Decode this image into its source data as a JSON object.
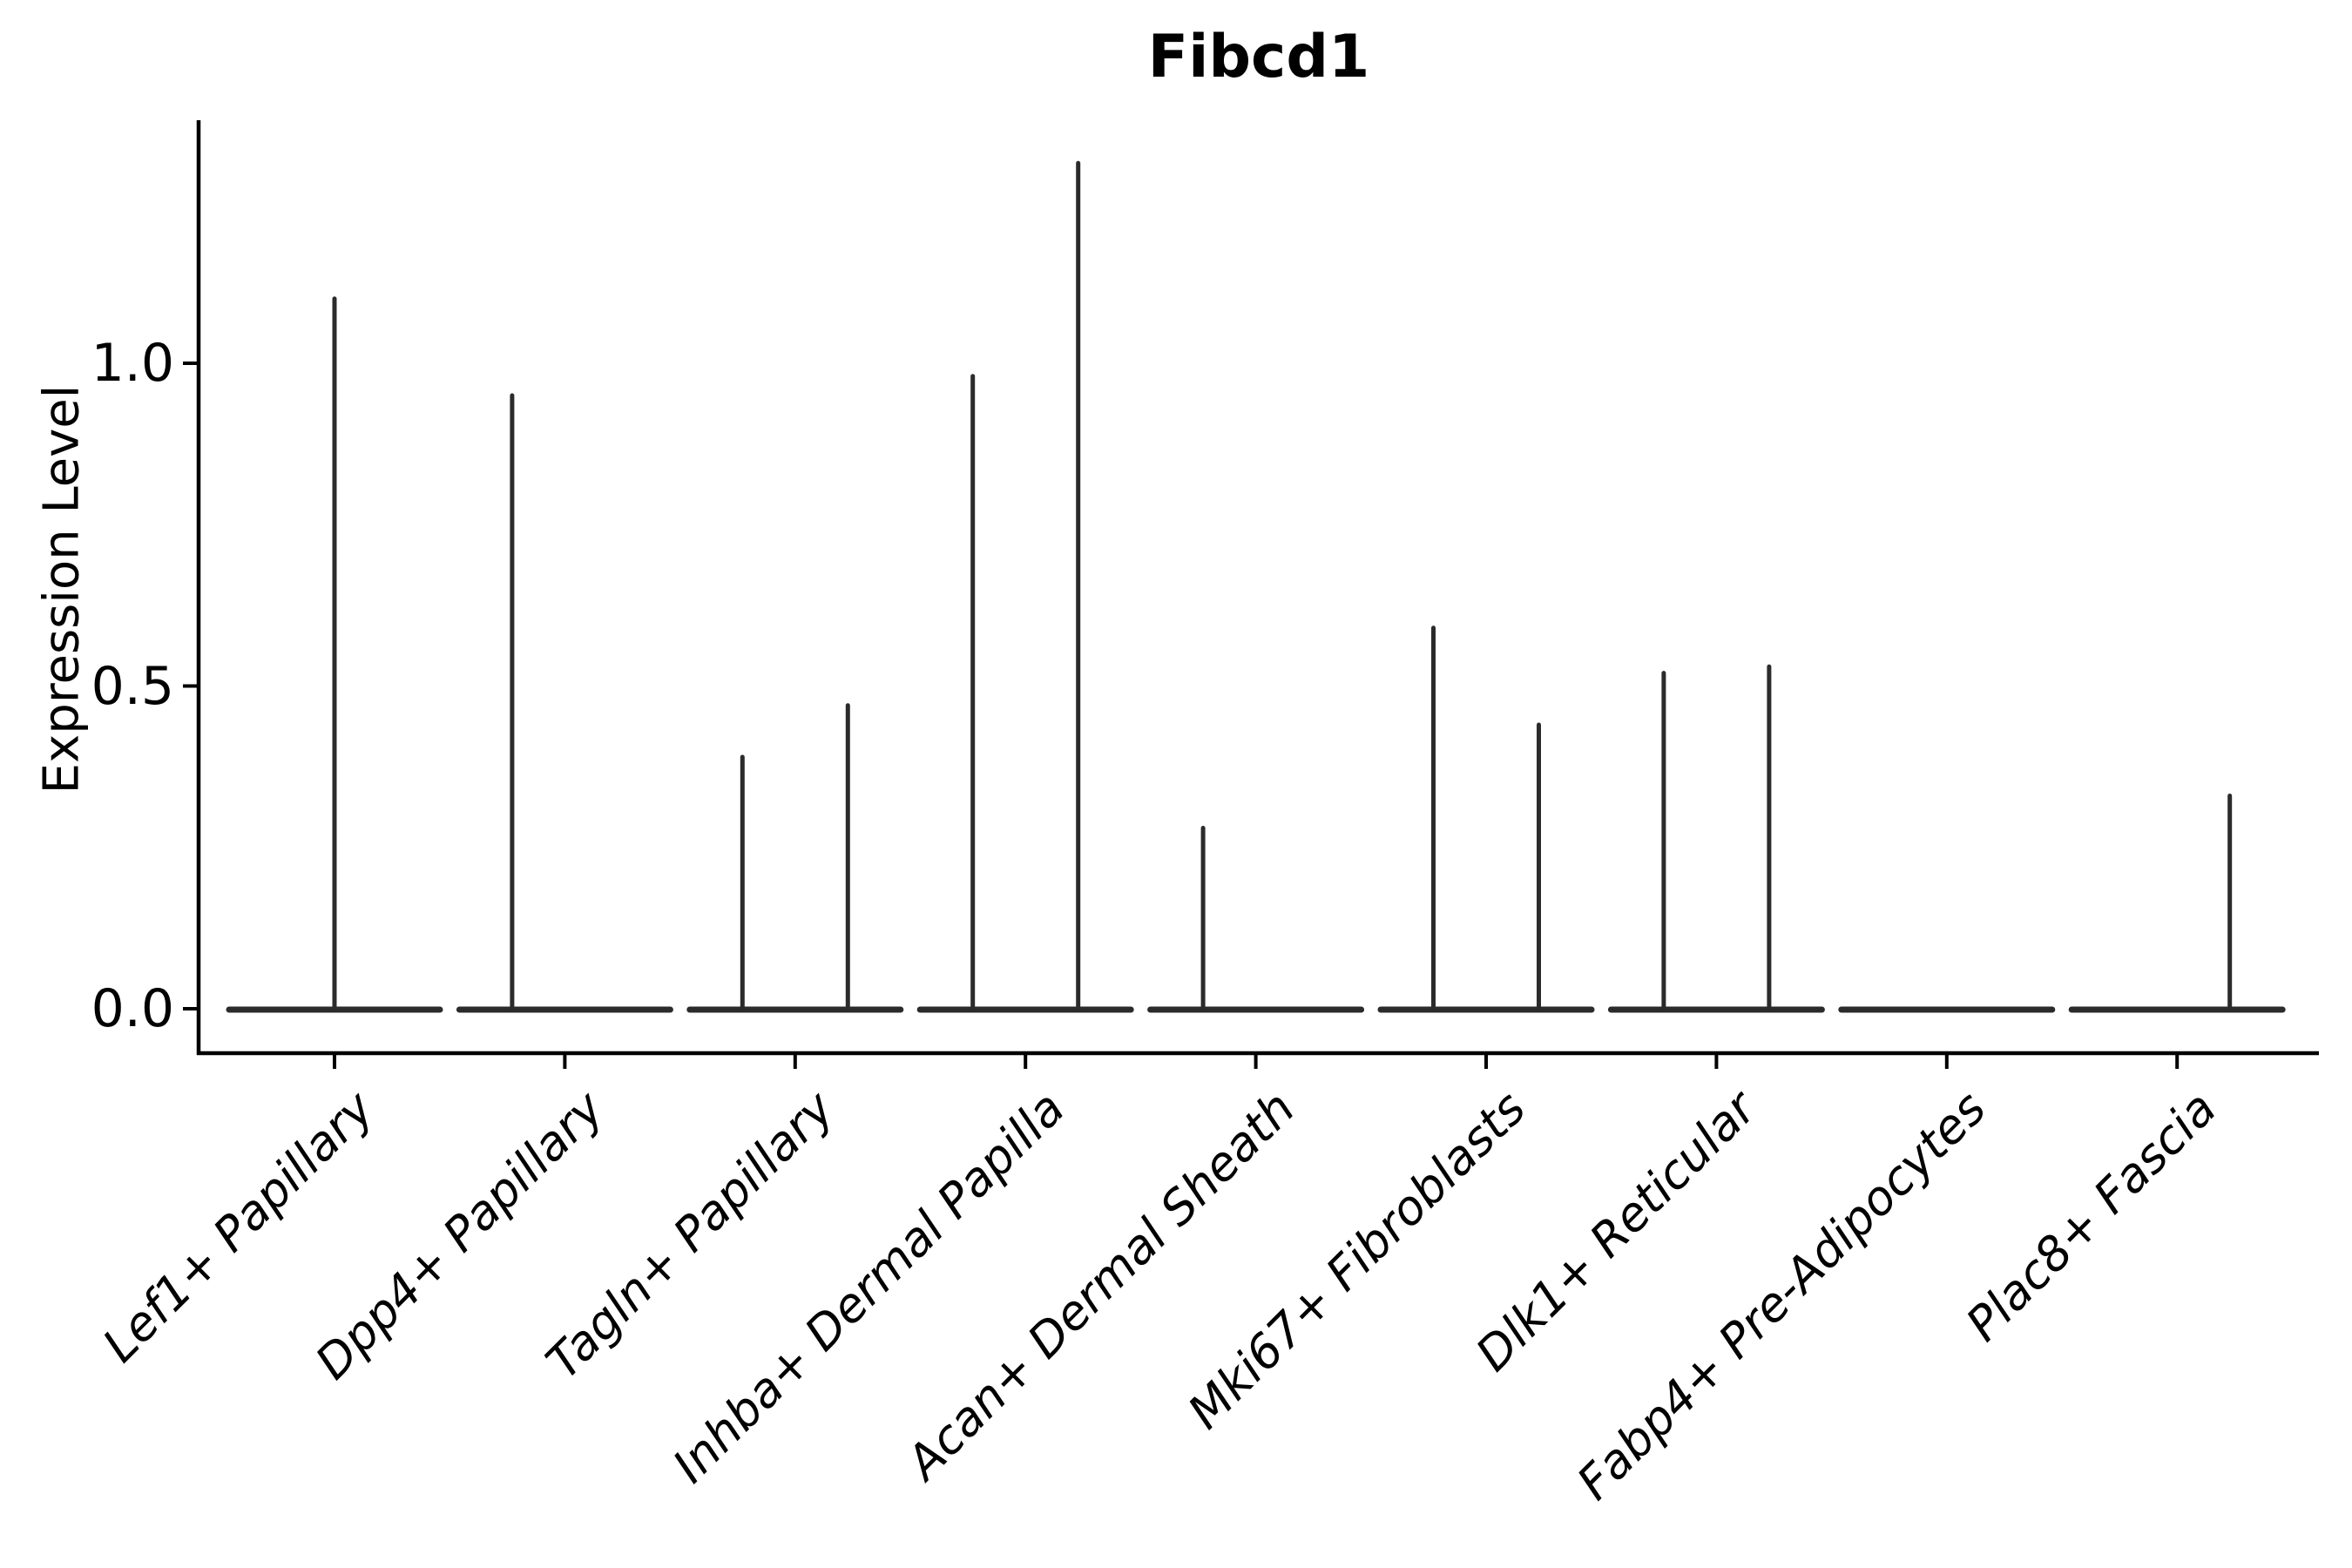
{
  "chart_data": {
    "type": "violin",
    "title": "Fibcd1",
    "ylabel": "Expression Level",
    "xlabel": "",
    "grid": false,
    "legend": "none",
    "ylim": [
      -0.07,
      1.37
    ],
    "ytick_values": [
      0.0,
      0.5,
      1.0
    ],
    "ytick_labels": [
      "0.0",
      "0.5",
      "1.0"
    ],
    "line_color": "#2b2b2b",
    "axis_color": "#000000",
    "categories": [
      "Lef1+ Papillary",
      "Dpp4+ Papillary",
      "Tagln+ Papillary",
      "Inhba+ Dermal Papilla",
      "Acan+ Dermal Sheath",
      "Mki67+ Fibroblasts",
      "Dlk1+ Reticular",
      "Fabp4+ Pre-Adipocytes",
      "Plac8+ Fascia"
    ],
    "violins": [
      {
        "category": "Lef1+ Papillary",
        "baseline": 0.0,
        "spikes": [
          {
            "position": "center",
            "max": 1.1
          }
        ]
      },
      {
        "category": "Dpp4+ Papillary",
        "baseline": 0.0,
        "spikes": [
          {
            "position": "left",
            "max": 0.95
          }
        ]
      },
      {
        "category": "Tagln+ Papillary",
        "baseline": 0.0,
        "spikes": [
          {
            "position": "left",
            "max": 0.39
          },
          {
            "position": "right",
            "max": 0.47
          }
        ]
      },
      {
        "category": "Inhba+ Dermal Papilla",
        "baseline": 0.0,
        "spikes": [
          {
            "position": "left",
            "max": 0.98
          },
          {
            "position": "right",
            "max": 1.31
          }
        ]
      },
      {
        "category": "Acan+ Dermal Sheath",
        "baseline": 0.0,
        "spikes": [
          {
            "position": "left",
            "max": 0.28
          }
        ]
      },
      {
        "category": "Mki67+ Fibroblasts",
        "baseline": 0.0,
        "spikes": [
          {
            "position": "left",
            "max": 0.59
          },
          {
            "position": "right",
            "max": 0.44
          }
        ]
      },
      {
        "category": "Dlk1+ Reticular",
        "baseline": 0.0,
        "spikes": [
          {
            "position": "left",
            "max": 0.52
          },
          {
            "position": "right",
            "max": 0.53
          }
        ]
      },
      {
        "category": "Fabp4+ Pre-Adipocytes",
        "baseline": 0.0,
        "spikes": []
      },
      {
        "category": "Plac8+ Fascia",
        "baseline": 0.0,
        "spikes": [
          {
            "position": "right",
            "max": 0.33
          }
        ]
      }
    ]
  }
}
